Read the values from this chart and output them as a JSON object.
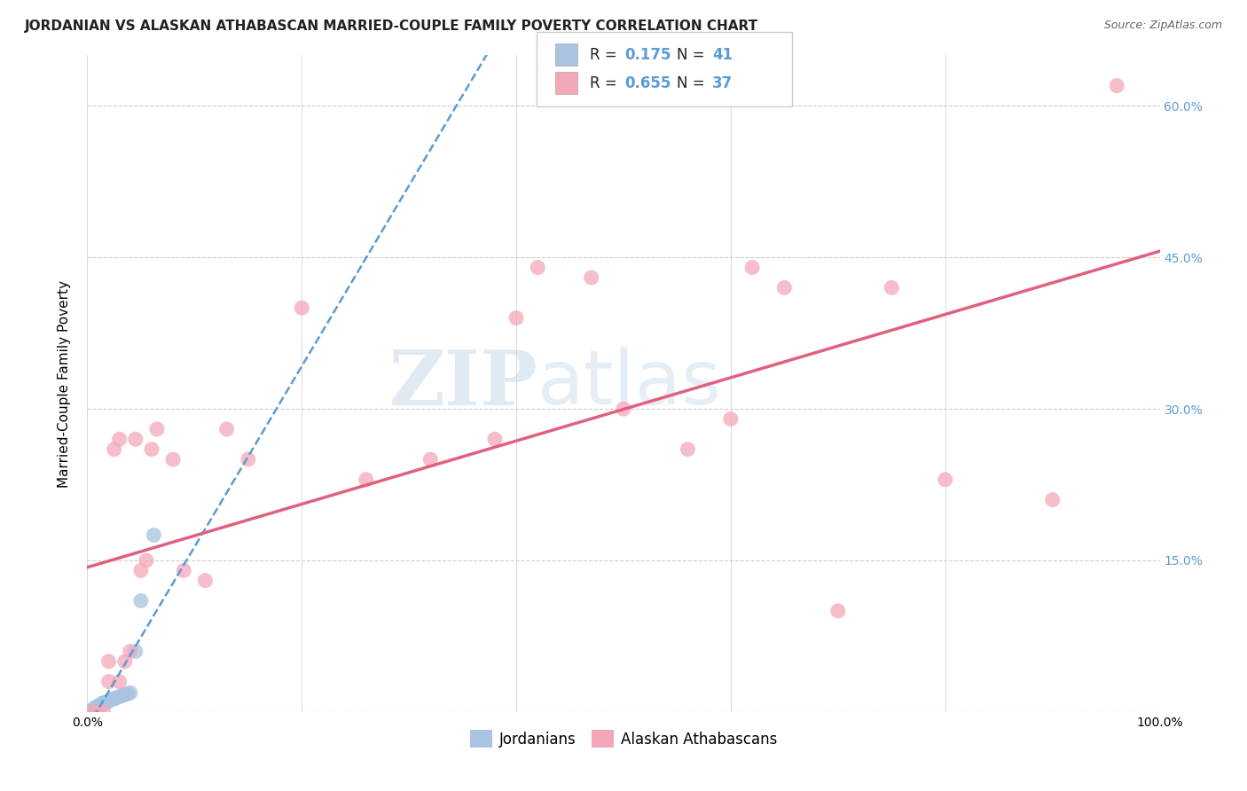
{
  "title": "JORDANIAN VS ALASKAN ATHABASCAN MARRIED-COUPLE FAMILY POVERTY CORRELATION CHART",
  "source": "Source: ZipAtlas.com",
  "xlabel": "",
  "ylabel": "Married-Couple Family Poverty",
  "watermark_zip": "ZIP",
  "watermark_atlas": "atlas",
  "legend_r_jordanian": "R =  0.175",
  "legend_n_jordanian": "N = 41",
  "legend_r_athabascan": "R =  0.655",
  "legend_n_athabascan": "N = 37",
  "jordanian_color": "#a8c4e0",
  "athabascan_color": "#f4a7b9",
  "jordanian_line_color": "#5b9bd5",
  "athabascan_line_color": "#e06080",
  "background_color": "#ffffff",
  "grid_color": "#cccccc",
  "xlim": [
    0,
    1.0
  ],
  "ylim": [
    0,
    0.65
  ],
  "x_ticks": [
    0.0,
    0.2,
    0.4,
    0.6,
    0.8,
    1.0
  ],
  "y_ticks": [
    0.0,
    0.15,
    0.3,
    0.45,
    0.6
  ],
  "y_tick_labels_right": [
    "",
    "15.0%",
    "30.0%",
    "45.0%",
    "60.0%"
  ],
  "jordanian_x": [
    0.002,
    0.003,
    0.004,
    0.004,
    0.005,
    0.005,
    0.005,
    0.006,
    0.006,
    0.006,
    0.007,
    0.007,
    0.007,
    0.008,
    0.008,
    0.009,
    0.009,
    0.01,
    0.01,
    0.011,
    0.012,
    0.012,
    0.013,
    0.014,
    0.015,
    0.015,
    0.016,
    0.018,
    0.019,
    0.02,
    0.022,
    0.025,
    0.027,
    0.03,
    0.032,
    0.035,
    0.038,
    0.04,
    0.045,
    0.05,
    0.062
  ],
  "jordanian_y": [
    0.0,
    0.0,
    0.0,
    0.001,
    0.0,
    0.001,
    0.002,
    0.001,
    0.002,
    0.003,
    0.002,
    0.003,
    0.004,
    0.003,
    0.004,
    0.003,
    0.005,
    0.005,
    0.006,
    0.006,
    0.006,
    0.007,
    0.007,
    0.008,
    0.008,
    0.009,
    0.009,
    0.01,
    0.01,
    0.011,
    0.012,
    0.013,
    0.014,
    0.015,
    0.016,
    0.017,
    0.018,
    0.019,
    0.06,
    0.11,
    0.175
  ],
  "athabascan_x": [
    0.005,
    0.01,
    0.015,
    0.02,
    0.02,
    0.025,
    0.03,
    0.03,
    0.035,
    0.04,
    0.045,
    0.05,
    0.055,
    0.06,
    0.065,
    0.08,
    0.09,
    0.11,
    0.13,
    0.15,
    0.2,
    0.26,
    0.32,
    0.38,
    0.4,
    0.42,
    0.47,
    0.5,
    0.56,
    0.6,
    0.62,
    0.65,
    0.7,
    0.75,
    0.8,
    0.9,
    0.96
  ],
  "athabascan_y": [
    0.0,
    0.0,
    0.0,
    0.03,
    0.05,
    0.26,
    0.27,
    0.03,
    0.05,
    0.06,
    0.27,
    0.14,
    0.15,
    0.26,
    0.28,
    0.25,
    0.14,
    0.13,
    0.28,
    0.25,
    0.4,
    0.23,
    0.25,
    0.27,
    0.39,
    0.44,
    0.43,
    0.3,
    0.26,
    0.29,
    0.44,
    0.42,
    0.1,
    0.42,
    0.23,
    0.21,
    0.62
  ]
}
